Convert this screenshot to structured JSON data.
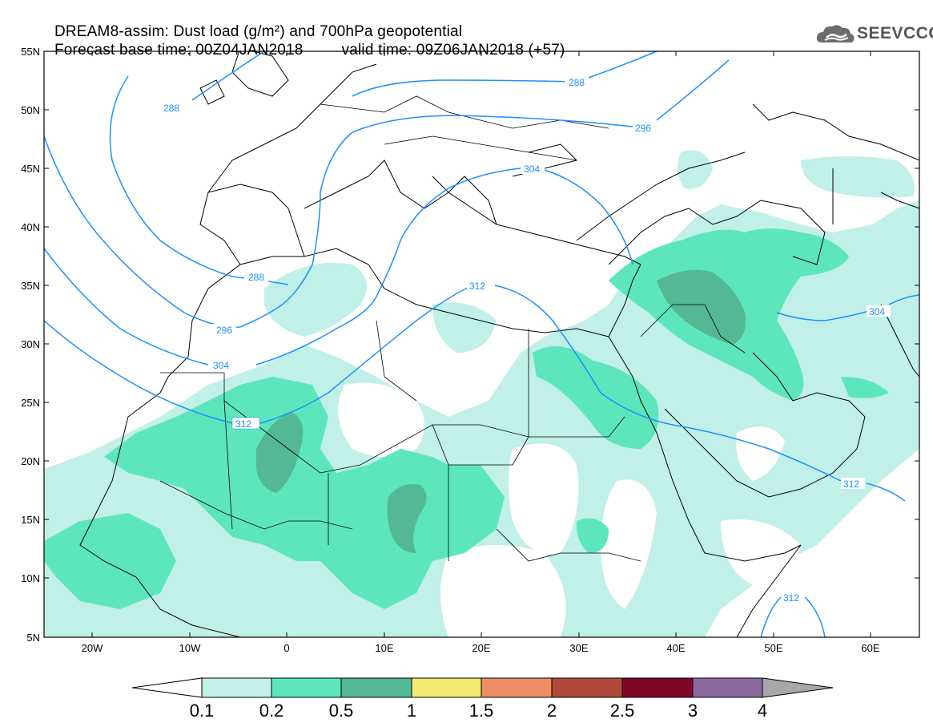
{
  "title": {
    "line1": "DREAM8-assim: Dust load (g/m²) and 700hPa geopotential",
    "line2_left": "Forecast base time: 00Z04JAN2018",
    "line2_right": "valid time: 09Z06JAN2018 (+57)"
  },
  "logo": {
    "text": "SEEVCCC",
    "icon": "cloud-icon"
  },
  "axes": {
    "lat_labels": [
      "55N",
      "50N",
      "45N",
      "40N",
      "35N",
      "30N",
      "25N",
      "20N",
      "15N",
      "10N",
      "5N"
    ],
    "lon_labels": [
      "20W",
      "10W",
      "0",
      "10E",
      "20E",
      "30E",
      "40E",
      "50E",
      "60E"
    ]
  },
  "contours": {
    "color": "#1e90ff",
    "labels": [
      "288",
      "288",
      "288",
      "296",
      "296",
      "304",
      "304",
      "304",
      "312",
      "312",
      "312",
      "312"
    ]
  },
  "colorbar": {
    "labels": [
      "0.1",
      "0.2",
      "0.5",
      "1",
      "1.5",
      "2",
      "2.5",
      "3",
      "4"
    ],
    "colors": [
      "#ffffff",
      "#c0f0e8",
      "#5de6bc",
      "#54b894",
      "#f2e872",
      "#ec8f64",
      "#b0493c",
      "#82062a",
      "#8c6aa0",
      "#a8a8a8"
    ]
  },
  "dust_colors": {
    "low": "#c0f0e8",
    "mid": "#5de6bc",
    "high": "#54b894"
  }
}
